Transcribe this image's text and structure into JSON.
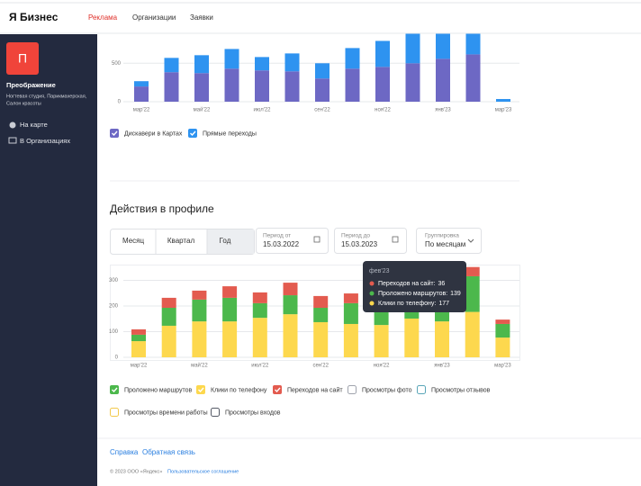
{
  "header": {
    "logo": "Я Бизнес",
    "nav": [
      "Реклама",
      "Организации",
      "Заявки"
    ]
  },
  "sidebar": {
    "avatar": "П",
    "name": "Преображение",
    "description": [
      "Ногтевая студия, Парикмахерская,",
      "Салон красоты"
    ],
    "links": [
      "На карте",
      "В Организациях"
    ]
  },
  "chart_data": [
    {
      "type": "bar",
      "stacked": true,
      "categories": [
        "мар'22",
        null,
        "май'22",
        null,
        "июл'22",
        null,
        "сен'22",
        null,
        "ноя'22",
        null,
        "янв'23",
        null,
        "мар'23"
      ],
      "series": [
        {
          "name": "Дискавери в Картах",
          "color": "#6d68c4",
          "values": [
            198,
            384,
            372,
            430,
            407,
            395,
            302,
            430,
            453,
            500,
            558,
            616,
            0
          ]
        },
        {
          "name": "Прямые переходы",
          "color": "#2e93f0",
          "values": [
            69,
            186,
            233,
            256,
            174,
            233,
            198,
            268,
            338,
            384,
            326,
            268,
            35
          ]
        }
      ],
      "ylim": [
        0,
        890
      ],
      "yticks": [
        0,
        500
      ],
      "grid": true
    },
    {
      "type": "bar",
      "stacked": true,
      "title": "Действия в профиле",
      "categories": [
        "мар'22",
        null,
        "май'22",
        null,
        "июл'22",
        null,
        "сен'22",
        null,
        "ноя'22",
        null,
        "янв'23",
        null,
        "мар'23"
      ],
      "series": [
        {
          "name": "Клики по телефону",
          "color": "#fdd84e",
          "values": [
            63,
            123,
            140,
            140,
            154,
            168,
            137,
            130,
            126,
            151,
            140,
            177,
            77
          ]
        },
        {
          "name": "Проложено маршрутов",
          "color": "#4cb84c",
          "values": [
            25,
            70,
            85,
            92,
            57,
            74,
            56,
            81,
            92,
            84,
            85,
            139,
            53
          ]
        },
        {
          "name": "Переходов на сайт",
          "color": "#e35b4f",
          "values": [
            21,
            39,
            35,
            45,
            42,
            49,
            46,
            38,
            35,
            35,
            28,
            36,
            17
          ]
        }
      ],
      "inactive_series": [
        {
          "name": "Просмотры фото",
          "color": "#a0a4ad"
        },
        {
          "name": "Просмотры отзывов",
          "color": "#5aa6b8"
        },
        {
          "name": "Просмотры времени работы",
          "color": "#f2c94c"
        },
        {
          "name": "Просмотры входов",
          "color": "#555a66"
        }
      ],
      "ylim": [
        0,
        358
      ],
      "yticks": [
        0,
        100,
        200,
        300
      ],
      "grid": true,
      "tooltip": {
        "title": "фев'23",
        "labels": [
          "Переходов на сайт:",
          "Проложено маршрутов:",
          "Клики по телефону:"
        ]
      }
    }
  ],
  "controls": {
    "periods": [
      "Месяц",
      "Квартал",
      "Год"
    ],
    "from": {
      "label": "Период от",
      "value": "15.03.2022"
    },
    "to": {
      "label": "Период до",
      "value": "15.03.2023"
    },
    "grouping": {
      "label": "Группировка",
      "value": "По месяцам"
    }
  },
  "footer": {
    "links": [
      "Справка",
      "Обратная связь"
    ],
    "copyright": "© 2023 ООО «Яндекс»",
    "agreement": "Пользовательское соглашение"
  }
}
